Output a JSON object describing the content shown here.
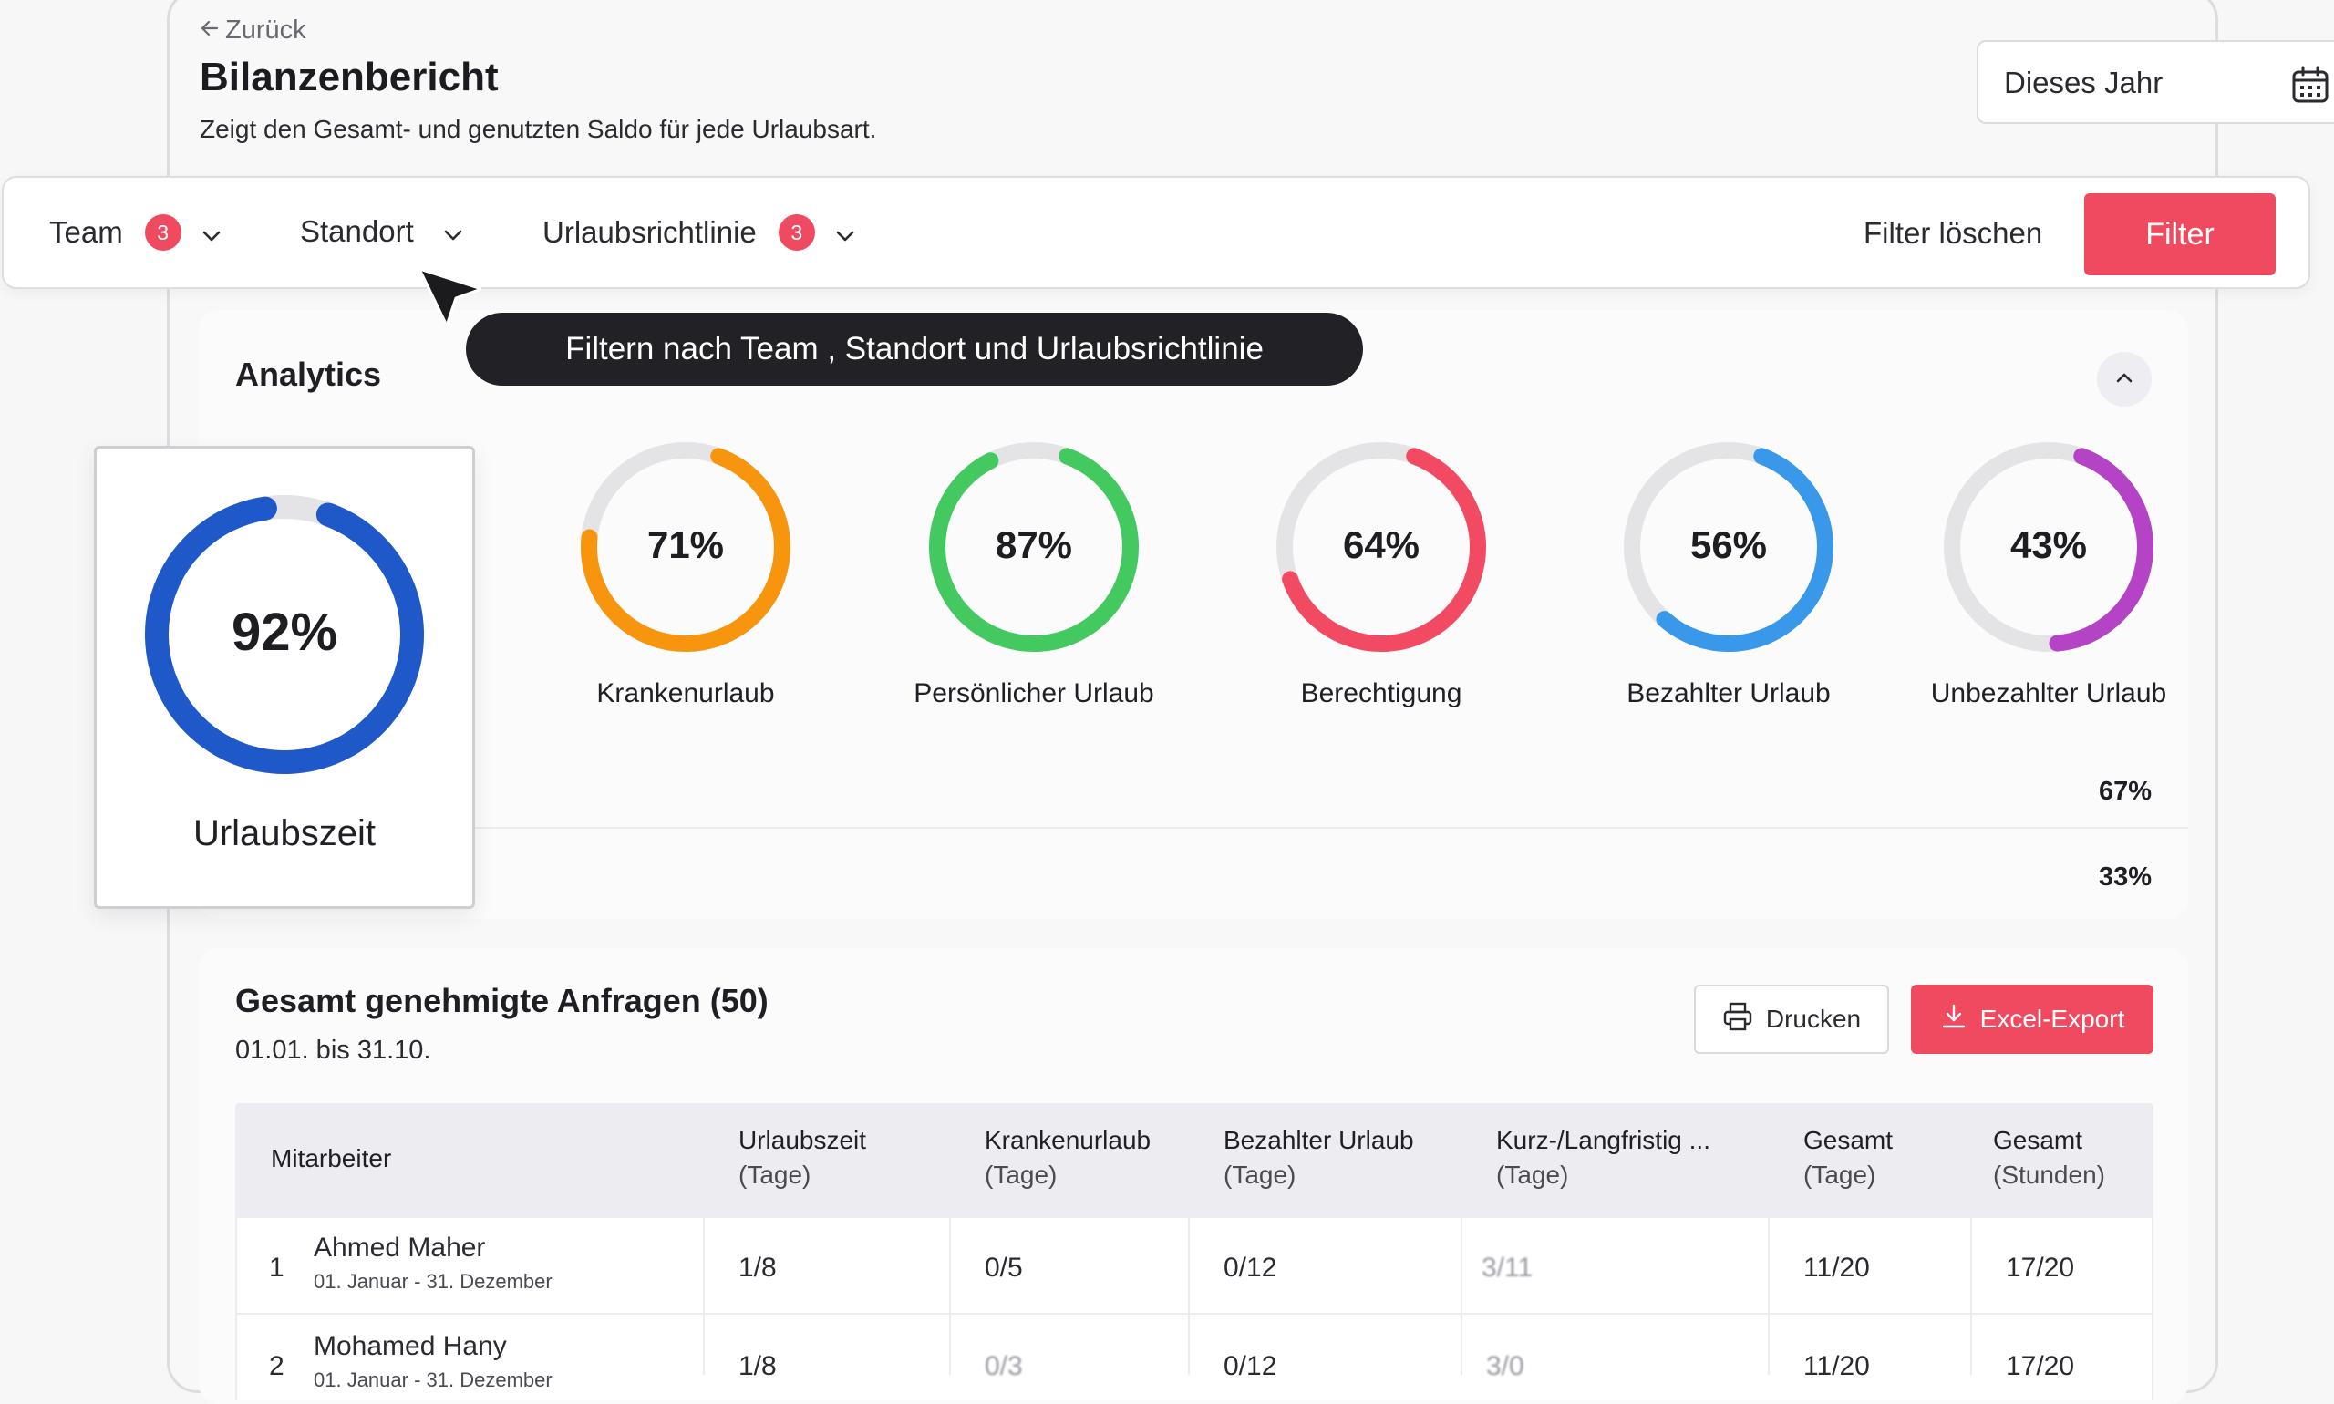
{
  "header": {
    "back_label": "Zurück",
    "title": "Bilanzenbericht",
    "subtitle": "Zeigt den Gesamt- und genutzten Saldo für jede Urlaubsart."
  },
  "date_filter": {
    "value": "Dieses Jahr",
    "icon": "calendar-icon"
  },
  "filters": {
    "team": {
      "label": "Team",
      "count": "3"
    },
    "location": {
      "label": "Standort"
    },
    "policy": {
      "label": "Urlaubsrichtlinie",
      "count": "3"
    },
    "clear_label": "Filter löschen",
    "apply_label": "Filter"
  },
  "tooltip": "Filtern nach Team , Standort und Urlaubsrichtlinie",
  "analytics": {
    "title": "Analytics",
    "highlight": {
      "label": "Urlaubszeit",
      "value_text": "92%",
      "percent": 92,
      "color": "#1f58c9"
    },
    "donuts": [
      {
        "label": "Krankenurlaub",
        "value_text": "71%",
        "percent": 71,
        "color": "#f7950f"
      },
      {
        "label": "Persönlicher Urlaub",
        "value_text": "87%",
        "percent": 87,
        "color": "#43c960"
      },
      {
        "label": "Berechtigung",
        "value_text": "64%",
        "percent": 64,
        "color": "#f24a63"
      },
      {
        "label": "Bezahlter Urlaub",
        "value_text": "56%",
        "percent": 56,
        "color": "#3a98ea"
      },
      {
        "label": "Unbezahlter Urlaub",
        "value_text": "43%",
        "percent": 43,
        "color": "#b443c5"
      }
    ],
    "row_percent_1": "67%",
    "row_percent_2": "33%"
  },
  "requests": {
    "title": "Gesamt genehmigte Anfragen (50)",
    "date_range": "01.01. bis 31.10.",
    "print_label": "Drucken",
    "export_label": "Excel-Export",
    "columns": [
      {
        "name": "Mitarbeiter",
        "unit": ""
      },
      {
        "name": "Urlaubszeit",
        "unit": "(Tage)"
      },
      {
        "name": "Krankenurlaub",
        "unit": "(Tage)"
      },
      {
        "name": "Bezahlter Urlaub",
        "unit": "(Tage)"
      },
      {
        "name": "Kurz-/Langfristig ...",
        "unit": "(Tage)"
      },
      {
        "name": "Gesamt",
        "unit": "(Tage)"
      },
      {
        "name": "Gesamt",
        "unit": "(Stunden)"
      }
    ],
    "rows": [
      {
        "index": "1",
        "name": "Ahmed Maher",
        "period": "01. Januar - 31. Dezember",
        "c1": "1/8",
        "c2": "0/5",
        "c3": "0/12",
        "c4": "3/11",
        "c5": "11/20",
        "c6": "17/20"
      },
      {
        "index": "2",
        "name": "Mohamed Hany",
        "period": "01. Januar - 31. Dezember",
        "c1": "1/8",
        "c2": "0/3",
        "c3": "0/12",
        "c4": "3/0",
        "c5": "11/20",
        "c6": "17/20"
      }
    ]
  }
}
